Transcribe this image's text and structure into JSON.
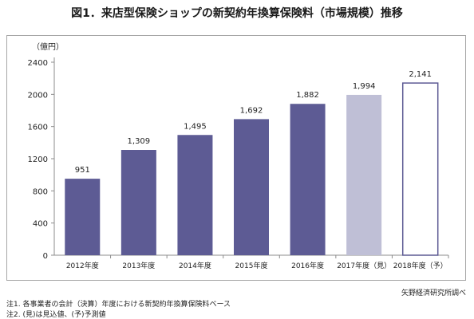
{
  "title": "図1．来店型保険ショップの新契約年換算保険料（市場規模）推移",
  "source": "矢野経済研究所調べ",
  "notes": [
    "注1. 各事業者の会計（決算）年度における新契約年換算保険料ベース",
    "注2. (見)は見込値、(予)予測値"
  ],
  "colors": {
    "actual": "#5d5b94",
    "estimate": "#bfbfd6",
    "forecast_fill": "#ffffff",
    "forecast_stroke": "#5d5b94"
  },
  "chart_data": {
    "type": "bar",
    "unit_label": "（億円）",
    "categories": [
      "2012年度",
      "2013年度",
      "2014年度",
      "2015年度",
      "2016年度",
      "2017年度（見）",
      "2018年度（予）"
    ],
    "values": [
      951,
      1309,
      1495,
      1692,
      1882,
      1994,
      2141
    ],
    "value_labels": [
      "951",
      "1,309",
      "1,495",
      "1,692",
      "1,882",
      "1,994",
      "2,141"
    ],
    "bar_styles": [
      "actual",
      "actual",
      "actual",
      "actual",
      "actual",
      "estimate",
      "forecast"
    ],
    "ylim": [
      0,
      2400
    ],
    "yticks": [
      0,
      400,
      800,
      1200,
      1600,
      2000,
      2400
    ],
    "grid": false
  }
}
